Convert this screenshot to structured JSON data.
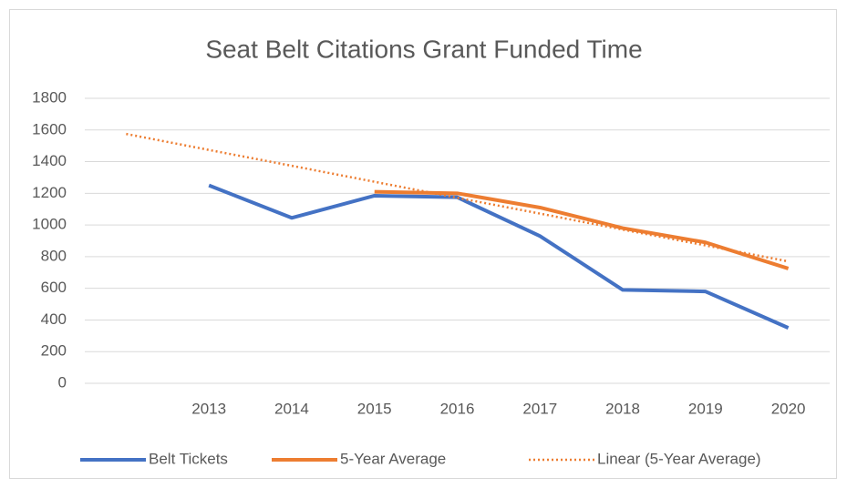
{
  "chart_data": {
    "type": "line",
    "title": "Seat Belt Citations Grant Funded Time",
    "categories": [
      null,
      "2013",
      "2014",
      "2015",
      "2016",
      "2017",
      "2018",
      "2019",
      "2020"
    ],
    "series": [
      {
        "name": "Belt Tickets",
        "color": "#4472c4",
        "style": "solid",
        "values": [
          null,
          1250,
          1045,
          1185,
          1175,
          930,
          590,
          580,
          350
        ]
      },
      {
        "name": "5-Year Average",
        "color": "#ed7d31",
        "style": "solid",
        "values": [
          null,
          null,
          null,
          1210,
          1200,
          1110,
          980,
          890,
          725
        ]
      },
      {
        "name": "Linear (5-Year Average)",
        "color": "#ed7d31",
        "style": "dotted",
        "values": [
          1575,
          1474,
          1374,
          1273,
          1172,
          1072,
          971,
          871,
          770
        ]
      }
    ],
    "ylim": [
      0,
      1800
    ],
    "yticks": [
      0,
      200,
      400,
      600,
      800,
      1000,
      1200,
      1400,
      1600,
      1800
    ],
    "grid": true,
    "legend": "bottom"
  }
}
